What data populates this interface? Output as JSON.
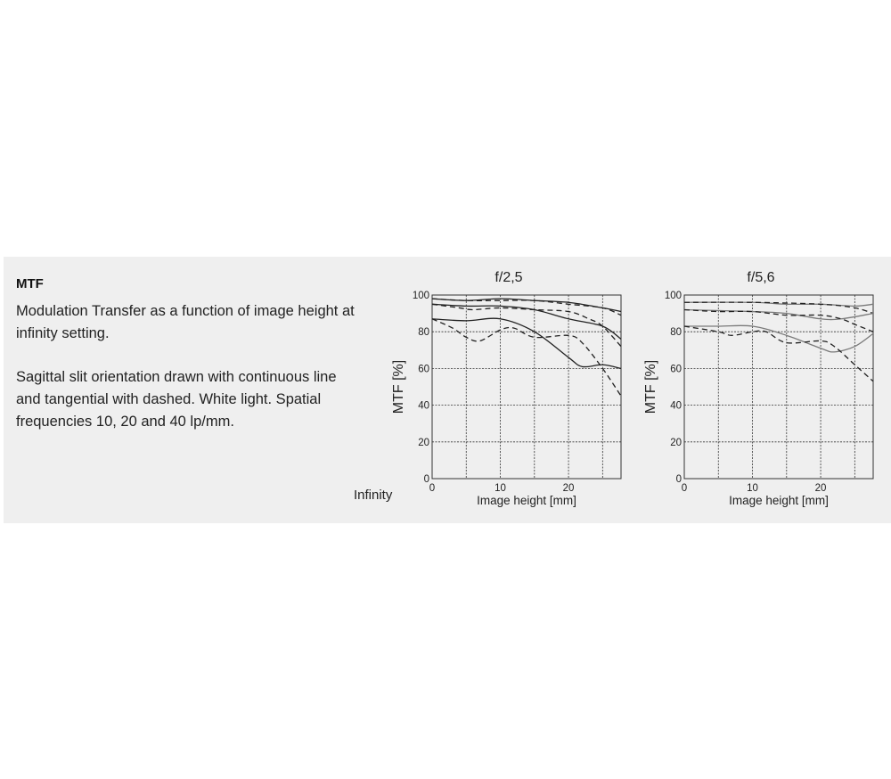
{
  "text": {
    "heading": "MTF",
    "description": "Modulation Transfer as a function of image height at infinity setting.",
    "legend_note": "Sagittal slit orientation drawn with continuous line and tangential with dashed. White light. Spatial frequencies 10, 20 and 40 lp/mm.",
    "setting_label": "Infinity"
  },
  "chart_data": [
    {
      "type": "line",
      "title": "f/2,5",
      "xlabel": "Image height [mm]",
      "ylabel": "MTF [%]",
      "xlim": [
        0,
        27.7
      ],
      "ylim": [
        0,
        100
      ],
      "xticks": [
        0,
        10,
        20
      ],
      "yticks": [
        0,
        20,
        40,
        60,
        80,
        100
      ],
      "grid": true,
      "solid_color": "#222222",
      "series": [
        {
          "style": "solid",
          "points": [
            [
              0,
              98
            ],
            [
              5,
              97
            ],
            [
              10,
              98
            ],
            [
              15,
              97
            ],
            [
              20,
              96
            ],
            [
              25,
              93
            ],
            [
              27.7,
              91
            ]
          ]
        },
        {
          "style": "dashed",
          "points": [
            [
              0,
              98
            ],
            [
              5,
              97
            ],
            [
              10,
              97
            ],
            [
              15,
              97
            ],
            [
              20,
              95
            ],
            [
              25,
              93
            ],
            [
              27.7,
              89
            ]
          ]
        },
        {
          "style": "solid",
          "points": [
            [
              0,
              95
            ],
            [
              5,
              94
            ],
            [
              10,
              94
            ],
            [
              15,
              92
            ],
            [
              20,
              87
            ],
            [
              25,
              83
            ],
            [
              27.7,
              76
            ]
          ]
        },
        {
          "style": "dashed",
          "points": [
            [
              0,
              95
            ],
            [
              4,
              93
            ],
            [
              6,
              92
            ],
            [
              10,
              93
            ],
            [
              15,
              92
            ],
            [
              20,
              91
            ],
            [
              23,
              87
            ],
            [
              25,
              83
            ],
            [
              27.7,
              72
            ]
          ]
        },
        {
          "style": "solid",
          "points": [
            [
              0,
              87
            ],
            [
              5,
              86
            ],
            [
              10,
              87
            ],
            [
              15,
              80
            ],
            [
              20,
              66
            ],
            [
              22,
              61
            ],
            [
              25,
              62
            ],
            [
              27.7,
              60
            ]
          ]
        },
        {
          "style": "dashed",
          "points": [
            [
              0,
              87
            ],
            [
              3,
              82
            ],
            [
              5,
              77
            ],
            [
              7,
              75
            ],
            [
              10,
              81
            ],
            [
              12,
              82
            ],
            [
              15,
              77
            ],
            [
              20,
              78
            ],
            [
              22,
              74
            ],
            [
              25,
              60
            ],
            [
              27.7,
              45
            ]
          ]
        }
      ]
    },
    {
      "type": "line",
      "title": "f/5,6",
      "xlabel": "Image height [mm]",
      "ylabel": "MTF [%]",
      "xlim": [
        0,
        27.7
      ],
      "ylim": [
        0,
        100
      ],
      "xticks": [
        0,
        10,
        20
      ],
      "yticks": [
        0,
        20,
        40,
        60,
        80,
        100
      ],
      "grid": true,
      "solid_color": "#7a7a7a",
      "series": [
        {
          "style": "solid",
          "points": [
            [
              0,
              96
            ],
            [
              10,
              96
            ],
            [
              15,
              95
            ],
            [
              20,
              95
            ],
            [
              25,
              94
            ],
            [
              27.7,
              95
            ]
          ]
        },
        {
          "style": "dashed",
          "points": [
            [
              0,
              96
            ],
            [
              10,
              96
            ],
            [
              20,
              95
            ],
            [
              25,
              93
            ],
            [
              27.7,
              90
            ]
          ]
        },
        {
          "style": "solid",
          "points": [
            [
              0,
              92
            ],
            [
              10,
              91
            ],
            [
              15,
              90
            ],
            [
              20,
              87
            ],
            [
              23,
              87
            ],
            [
              27.7,
              90
            ]
          ]
        },
        {
          "style": "dashed",
          "points": [
            [
              0,
              92
            ],
            [
              5,
              91
            ],
            [
              10,
              91
            ],
            [
              15,
              89
            ],
            [
              20,
              89
            ],
            [
              23,
              87
            ],
            [
              25,
              84
            ],
            [
              27.7,
              80
            ]
          ]
        },
        {
          "style": "solid",
          "points": [
            [
              0,
              83
            ],
            [
              5,
              83
            ],
            [
              10,
              83
            ],
            [
              15,
              78
            ],
            [
              20,
              71
            ],
            [
              22,
              69
            ],
            [
              25,
              72
            ],
            [
              27.7,
              79
            ]
          ]
        },
        {
          "style": "dashed",
          "points": [
            [
              0,
              83
            ],
            [
              5,
              80
            ],
            [
              7,
              78
            ],
            [
              10,
              80
            ],
            [
              12,
              80
            ],
            [
              15,
              74
            ],
            [
              20,
              75
            ],
            [
              22,
              72
            ],
            [
              25,
              62
            ],
            [
              27.7,
              53
            ]
          ]
        }
      ]
    }
  ]
}
